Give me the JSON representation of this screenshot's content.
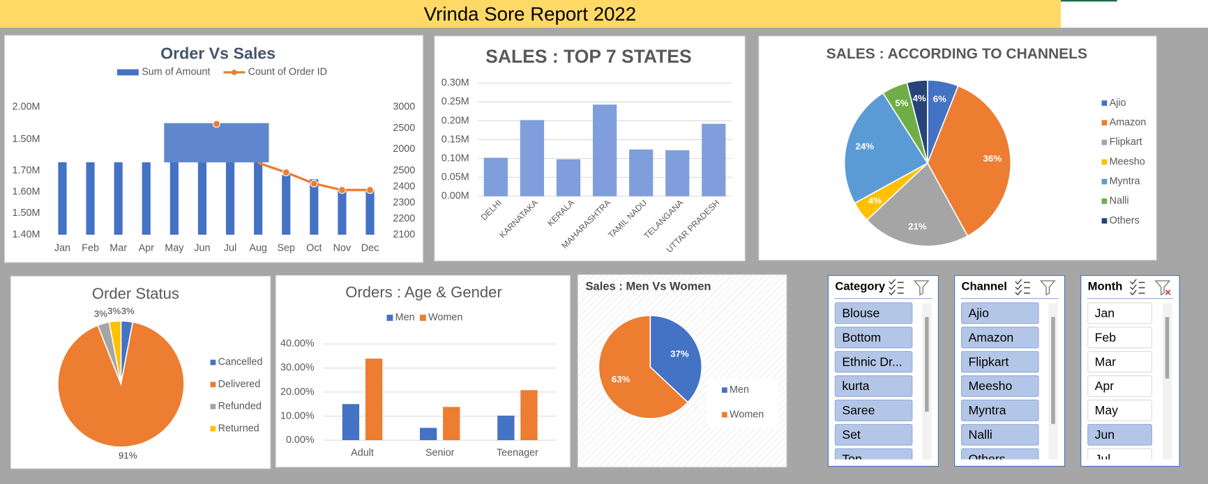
{
  "header": {
    "title": "Vrinda Sore Report 2022"
  },
  "chart_data": [
    {
      "type": "combo",
      "title": "Order Vs Sales",
      "categories": [
        "Jan",
        "Feb",
        "Mar",
        "Apr",
        "May",
        "Jun",
        "Jul",
        "Aug",
        "Sep",
        "Oct",
        "Nov",
        "Dec"
      ],
      "series": [
        {
          "name": "Sum of Amount",
          "type": "bar",
          "color": "#4472c4",
          "values": [
            1.74,
            1.74,
            1.74,
            1.74,
            1.74,
            1.74,
            1.74,
            1.74,
            1.68,
            1.66,
            1.61,
            1.61
          ]
        },
        {
          "name": "Count of Order ID",
          "type": "line",
          "color": "#ed7d31",
          "axis": "y2",
          "values": [
            null,
            null,
            null,
            null,
            null,
            null,
            null,
            2550,
            2490,
            2420,
            2380,
            2380
          ]
        }
      ],
      "y_segments": [
        {
          "ylim": [
            1.4,
            1.7
          ],
          "yticks": [
            {
              "value": 1.4,
              "label": "1.40M"
            },
            {
              "value": 1.5,
              "label": "1.50M"
            },
            {
              "value": 1.6,
              "label": "1.60M"
            },
            {
              "value": 1.7,
              "label": "1.70M"
            }
          ]
        },
        {
          "ylim": [
            1.5,
            2.0
          ],
          "yticks": [
            {
              "value": 1.5,
              "label": "1.50M"
            },
            {
              "value": 2.0,
              "label": "2.00M"
            }
          ]
        }
      ],
      "y2_segments": [
        {
          "ylim": [
            2100,
            2500
          ],
          "yticks": [
            2100,
            2200,
            2300,
            2400,
            2500
          ]
        },
        {
          "ylim": [
            2000,
            3000
          ],
          "yticks": [
            2000,
            2500,
            3000
          ]
        }
      ]
    },
    {
      "type": "bar",
      "title": "SALES : TOP 7 STATES",
      "categories": [
        "DELHI",
        "KARNATAKA",
        "KERALA",
        "MAHARASHTRA",
        "TAMIL NADU",
        "TELANGANA",
        "UTTAR PRADESH"
      ],
      "values": [
        0.102,
        0.202,
        0.098,
        0.243,
        0.124,
        0.122,
        0.192
      ],
      "color": "#7f9edb",
      "ylim": [
        0,
        0.3
      ],
      "yticks": [
        {
          "value": 0,
          "label": "0.00M"
        },
        {
          "value": 0.05,
          "label": "0.05M"
        },
        {
          "value": 0.1,
          "label": "0.10M"
        },
        {
          "value": 0.15,
          "label": "0.15M"
        },
        {
          "value": 0.2,
          "label": "0.20M"
        },
        {
          "value": 0.25,
          "label": "0.25M"
        },
        {
          "value": 0.3,
          "label": "0.30M"
        }
      ],
      "grid": true
    },
    {
      "type": "pie",
      "title": "SALES : ACCORDING TO CHANNELS",
      "categories": [
        "Ajio",
        "Amazon",
        "Flipkart",
        "Meesho",
        "Myntra",
        "Nalli",
        "Others"
      ],
      "values": [
        6,
        36,
        21,
        4,
        24,
        5,
        4
      ],
      "value_labels": [
        "6%",
        "36%",
        "21%",
        "4%",
        "24%",
        "5%",
        "4%"
      ],
      "colors": [
        "#4472c4",
        "#ed7d31",
        "#a5a5a5",
        "#ffc000",
        "#5b9bd5",
        "#70ad47",
        "#264478"
      ],
      "legend": "right"
    },
    {
      "type": "pie",
      "title": "Order Status",
      "categories": [
        "Cancelled",
        "Delivered",
        "Refunded",
        "Returned"
      ],
      "values": [
        3,
        91,
        3,
        3
      ],
      "value_labels": [
        "3%",
        "91%",
        "3%",
        "3%"
      ],
      "colors": [
        "#4472c4",
        "#ed7d31",
        "#a5a5a5",
        "#ffc000"
      ],
      "legend": "right"
    },
    {
      "type": "bar",
      "title": "Orders : Age & Gender",
      "categories": [
        "Adult",
        "Senior",
        "Teenager"
      ],
      "series": [
        {
          "name": "Men",
          "color": "#4472c4",
          "values": [
            15.0,
            5.1,
            10.2
          ]
        },
        {
          "name": "Women",
          "color": "#ed7d31",
          "values": [
            33.9,
            13.8,
            20.8
          ]
        }
      ],
      "ylim": [
        0,
        40
      ],
      "yticks": [
        {
          "value": 0,
          "label": "0.00%"
        },
        {
          "value": 10,
          "label": "10.00%"
        },
        {
          "value": 20,
          "label": "20.00%"
        },
        {
          "value": 30,
          "label": "30.00%"
        },
        {
          "value": 40,
          "label": "40.00%"
        }
      ],
      "grid": true,
      "legend": "top"
    },
    {
      "type": "pie",
      "title": "Sales : Men Vs Women",
      "categories": [
        "Men",
        "Women"
      ],
      "values": [
        37,
        63
      ],
      "value_labels": [
        "37%",
        "63%"
      ],
      "colors": [
        "#4472c4",
        "#ed7d31"
      ],
      "legend": "right"
    }
  ],
  "slicers": [
    {
      "title": "Category",
      "items": [
        "Blouse",
        "Bottom",
        "Ethnic Dr...",
        "kurta",
        "Saree",
        "Set",
        "Top"
      ],
      "selected": [
        true,
        true,
        true,
        true,
        true,
        true,
        true
      ]
    },
    {
      "title": "Channel",
      "items": [
        "Ajio",
        "Amazon",
        "Flipkart",
        "Meesho",
        "Myntra",
        "Nalli",
        "Others"
      ],
      "selected": [
        true,
        true,
        true,
        true,
        true,
        true,
        true
      ]
    },
    {
      "title": "Month",
      "items": [
        "Jan",
        "Feb",
        "Mar",
        "Apr",
        "May",
        "Jun",
        "Jul"
      ],
      "selected": [
        false,
        false,
        false,
        false,
        false,
        true,
        false
      ]
    }
  ]
}
